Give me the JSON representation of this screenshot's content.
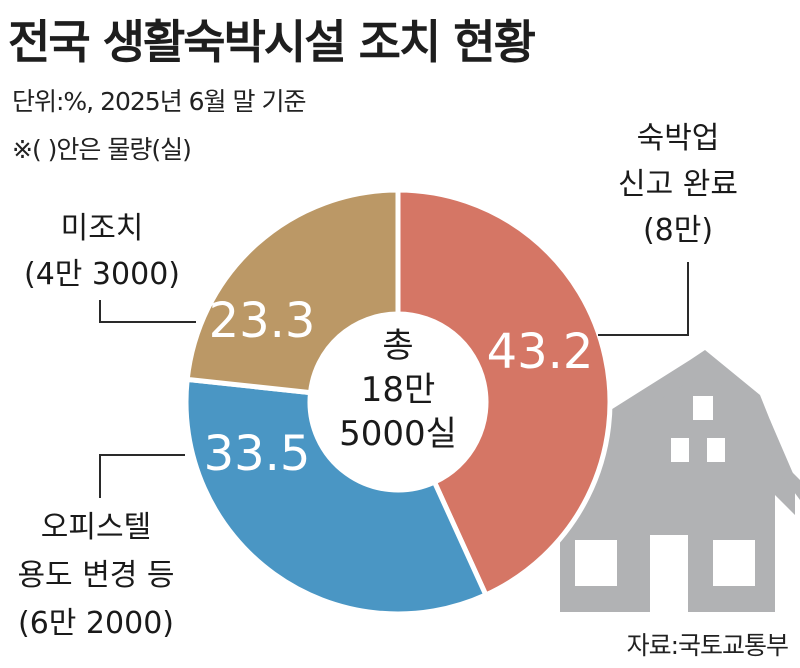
{
  "title": "전국 생활숙박시설 조치 현황",
  "unit_note": "단위:%, 2025년 6월 말 기준",
  "paren_note": "※(   )안은 물량(실)",
  "source": "자료:국토교통부",
  "center": {
    "line1": "총",
    "line2": "18만",
    "line3": "5000실"
  },
  "colors": {
    "reported": "#d57665",
    "office": "#4a96c4",
    "unresolved": "#bb9866",
    "house": "#b1b2b4"
  },
  "chart_data": {
    "type": "pie",
    "variant": "donut",
    "total_label": "총 18만 5000실",
    "slices": [
      {
        "key": "reported",
        "value": 43.2,
        "value_label": "43.2",
        "label_lines": [
          "숙박업",
          "신고 완료",
          "(8만)"
        ]
      },
      {
        "key": "office",
        "value": 33.5,
        "value_label": "33.5",
        "label_lines": [
          "오피스텔",
          "용도 변경 등",
          "(6만 2000)"
        ]
      },
      {
        "key": "unresolved",
        "value": 23.3,
        "value_label": "23.3",
        "label_lines": [
          "미조치",
          "(4만 3000)"
        ]
      }
    ]
  }
}
